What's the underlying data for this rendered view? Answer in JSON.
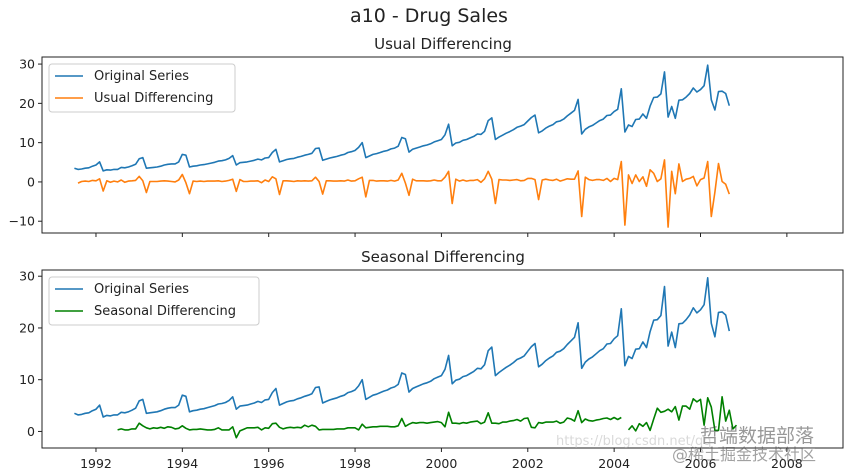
{
  "figure": {
    "suptitle": "a10 - Drug Sales",
    "watermark_main": "哲端数据部落",
    "watermark_sub": "@稀土掘金技术社区",
    "watermark_url": "https://blog.csdn.net/qq_"
  },
  "colors": {
    "original": "#1f77b4",
    "usual_diff": "#ff7f0e",
    "seasonal_diff": "#008000",
    "axis": "#222222"
  },
  "chart_data": [
    {
      "type": "line",
      "title": "Usual Differencing",
      "xlabel": "",
      "ylabel": "",
      "xlim": [
        1990.75,
        2009.3
      ],
      "ylim": [
        -13,
        31.8
      ],
      "yticks": [
        -10,
        0,
        10,
        20,
        30
      ],
      "ytick_labels": [
        "−10",
        "0",
        "10",
        "20",
        "30"
      ],
      "xticks": [
        1992,
        1994,
        1996,
        1998,
        2000,
        2002,
        2004,
        2006,
        2008
      ],
      "xtick_labels": [],
      "legend": {
        "position": "upper-left",
        "entries": [
          "Original Series",
          "Usual Differencing"
        ]
      },
      "grid": false,
      "series_refs": [
        "original",
        "usual_diff"
      ]
    },
    {
      "type": "line",
      "title": "Seasonal Differencing",
      "xlabel": "",
      "ylabel": "",
      "xlim": [
        1990.75,
        2009.3
      ],
      "ylim": [
        -3.2,
        31.2
      ],
      "yticks": [
        0,
        10,
        20,
        30
      ],
      "ytick_labels": [
        "0",
        "10",
        "20",
        "30"
      ],
      "xticks": [
        1992,
        1994,
        1996,
        1998,
        2000,
        2002,
        2004,
        2006,
        2008
      ],
      "xtick_labels": [
        "1992",
        "1994",
        "1996",
        "1998",
        "2000",
        "2002",
        "2004",
        "2006",
        "2008"
      ],
      "legend": {
        "position": "upper-left",
        "entries": [
          "Original Series",
          "Seasonal Differencing"
        ]
      },
      "grid": false,
      "series_refs": [
        "original",
        "seasonal_diff"
      ]
    }
  ],
  "series": {
    "start": 1991.5,
    "step": 0.08333,
    "original": {
      "name": "Original Series",
      "values": [
        3.5,
        3.2,
        3.3,
        3.5,
        3.6,
        4.0,
        4.3,
        5.1,
        2.8,
        3.1,
        3.0,
        3.2,
        3.2,
        3.7,
        3.6,
        3.8,
        4.1,
        4.5,
        5.9,
        6.2,
        3.5,
        3.6,
        3.7,
        3.8,
        4.0,
        4.3,
        4.5,
        4.6,
        4.6,
        5.1,
        7.0,
        6.8,
        3.8,
        4.0,
        4.1,
        4.3,
        4.4,
        4.6,
        4.8,
        5.0,
        5.3,
        5.4,
        5.6,
        6.0,
        6.7,
        4.3,
        4.9,
        5.0,
        5.1,
        5.3,
        5.5,
        5.8,
        5.6,
        6.1,
        6.2,
        7.5,
        8.3,
        5.1,
        5.4,
        5.7,
        5.9,
        6.0,
        6.3,
        6.5,
        6.8,
        7.0,
        7.3,
        8.5,
        8.6,
        5.5,
        5.8,
        6.1,
        6.3,
        6.5,
        6.8,
        7.0,
        7.5,
        7.7,
        8.0,
        8.8,
        10.0,
        6.2,
        6.6,
        7.0,
        7.2,
        7.5,
        7.8,
        8.0,
        8.4,
        8.6,
        9.1,
        11.3,
        11.0,
        7.6,
        8.3,
        8.6,
        8.9,
        9.2,
        9.4,
        9.7,
        10.2,
        10.5,
        10.8,
        12.0,
        14.7,
        9.2,
        9.9,
        10.1,
        10.6,
        10.8,
        11.2,
        11.6,
        12.2,
        12.1,
        12.9,
        15.6,
        16.3,
        10.8,
        11.4,
        11.9,
        12.4,
        12.8,
        13.3,
        13.9,
        14.2,
        14.6,
        15.5,
        16.4,
        17.0,
        12.5,
        13.0,
        13.7,
        14.2,
        14.6,
        15.3,
        15.5,
        16.0,
        16.8,
        17.5,
        18.2,
        21.0,
        12.2,
        13.4,
        14.0,
        14.4,
        15.0,
        15.6,
        16.0,
        16.9,
        17.0,
        17.9,
        18.5,
        23.7,
        12.7,
        14.5,
        14.1,
        15.9,
        16.0,
        17.3,
        16.2,
        19.3,
        21.5,
        21.6,
        22.4,
        28.0,
        16.5,
        19.2,
        16.2,
        20.8,
        20.9,
        21.6,
        22.5,
        23.9,
        22.9,
        23.5,
        24.5,
        29.7,
        20.9,
        18.3,
        23.0,
        23.1,
        22.5,
        19.4
      ]
    },
    "usual_diff": {
      "name": "Usual Differencing",
      "values": [
        null,
        -0.3,
        0.1,
        0.2,
        0.1,
        0.4,
        0.3,
        0.8,
        -2.3,
        0.3,
        -0.1,
        0.2,
        0.0,
        0.5,
        -0.1,
        0.2,
        0.3,
        0.4,
        1.4,
        0.3,
        -2.7,
        0.1,
        0.1,
        0.1,
        0.2,
        0.3,
        0.2,
        0.1,
        0.0,
        0.5,
        1.9,
        -0.2,
        -3.0,
        0.2,
        0.1,
        0.2,
        0.1,
        0.2,
        0.2,
        0.2,
        0.3,
        0.1,
        0.2,
        0.4,
        0.7,
        -2.4,
        0.6,
        0.1,
        0.1,
        0.2,
        0.2,
        0.3,
        -0.2,
        0.5,
        0.1,
        1.3,
        0.8,
        -3.2,
        0.3,
        0.3,
        0.2,
        0.1,
        0.3,
        0.2,
        0.3,
        0.2,
        0.3,
        1.2,
        0.1,
        -3.1,
        0.3,
        0.3,
        0.2,
        0.2,
        0.3,
        0.2,
        0.5,
        0.2,
        0.3,
        0.8,
        1.2,
        -3.8,
        0.4,
        0.4,
        0.2,
        0.3,
        0.3,
        0.2,
        0.4,
        0.2,
        0.5,
        2.2,
        -0.3,
        -3.4,
        0.7,
        0.3,
        0.3,
        0.3,
        0.2,
        0.3,
        0.5,
        0.3,
        0.3,
        1.2,
        2.7,
        -5.5,
        0.7,
        0.2,
        0.5,
        0.2,
        0.4,
        0.4,
        0.6,
        -0.1,
        0.8,
        2.7,
        0.7,
        -5.5,
        0.6,
        0.5,
        0.5,
        0.4,
        0.5,
        0.6,
        0.3,
        0.4,
        0.9,
        0.9,
        0.6,
        -4.5,
        0.5,
        0.7,
        0.5,
        0.4,
        0.7,
        0.2,
        0.5,
        0.8,
        0.7,
        0.7,
        2.8,
        -8.8,
        1.2,
        0.6,
        0.4,
        0.6,
        0.6,
        0.4,
        0.9,
        0.1,
        0.9,
        0.6,
        5.2,
        -11.0,
        1.8,
        -0.4,
        1.8,
        0.1,
        1.3,
        -1.1,
        3.1,
        2.2,
        0.1,
        0.8,
        5.6,
        -11.5,
        2.7,
        -3.0,
        4.6,
        0.1,
        0.7,
        0.9,
        1.4,
        -1.0,
        0.6,
        1.0,
        5.2,
        -8.8,
        -2.6,
        4.7,
        0.1,
        -0.6,
        -3.1
      ]
    },
    "seasonal_diff": {
      "name": "Seasonal Differencing",
      "values": [
        null,
        null,
        null,
        null,
        null,
        null,
        null,
        null,
        null,
        null,
        null,
        null,
        0.3,
        0.5,
        0.3,
        0.3,
        0.5,
        0.5,
        1.6,
        1.1,
        0.7,
        0.5,
        0.7,
        0.6,
        0.8,
        0.6,
        0.9,
        0.8,
        0.5,
        0.6,
        1.1,
        0.6,
        0.3,
        0.4,
        0.4,
        0.5,
        0.4,
        0.3,
        0.3,
        0.4,
        0.7,
        0.3,
        0.3,
        0.3,
        0.9,
        -1.2,
        0.1,
        0.4,
        0.7,
        0.7,
        0.7,
        0.8,
        0.3,
        0.7,
        0.6,
        1.5,
        1.6,
        0.8,
        0.5,
        0.7,
        0.8,
        0.7,
        0.8,
        0.7,
        1.2,
        0.9,
        1.2,
        1.0,
        0.3,
        0.4,
        0.4,
        0.4,
        0.4,
        0.5,
        0.5,
        0.5,
        0.7,
        0.7,
        0.7,
        0.3,
        1.4,
        0.7,
        0.8,
        0.9,
        0.9,
        1.0,
        1.0,
        1.0,
        0.9,
        0.9,
        1.1,
        2.5,
        1.0,
        1.4,
        1.7,
        1.6,
        1.7,
        1.7,
        1.6,
        1.7,
        1.8,
        1.9,
        1.7,
        0.9,
        3.7,
        1.6,
        1.6,
        1.5,
        1.7,
        1.6,
        1.8,
        1.9,
        2.0,
        1.5,
        1.8,
        3.6,
        1.6,
        1.6,
        1.5,
        1.8,
        1.8,
        2.0,
        2.1,
        2.3,
        2.0,
        2.5,
        2.6,
        0.8,
        0.7,
        1.7,
        1.6,
        1.8,
        1.8,
        1.8,
        2.0,
        1.6,
        1.8,
        2.6,
        2.4,
        2.0,
        4.0,
        1.7,
        2.4,
        2.1,
        2.0,
        2.2,
        2.3,
        2.5,
        2.6,
        2.3,
        2.7,
        2.3,
        2.7,
        null,
        0.3,
        1.1,
        0.1,
        1.5,
        1.0,
        1.7,
        0.2,
        2.4,
        4.5,
        3.7,
        3.9,
        4.3,
        3.8,
        4.8,
        2.2,
        4.9,
        4.9,
        4.3,
        6.3,
        5.7,
        6.2,
        1.2,
        6.5,
        4.7,
        0.2,
        0.2,
        6.7,
        2.0,
        4.1,
        0.5,
        1.2,
        null
      ]
    }
  }
}
